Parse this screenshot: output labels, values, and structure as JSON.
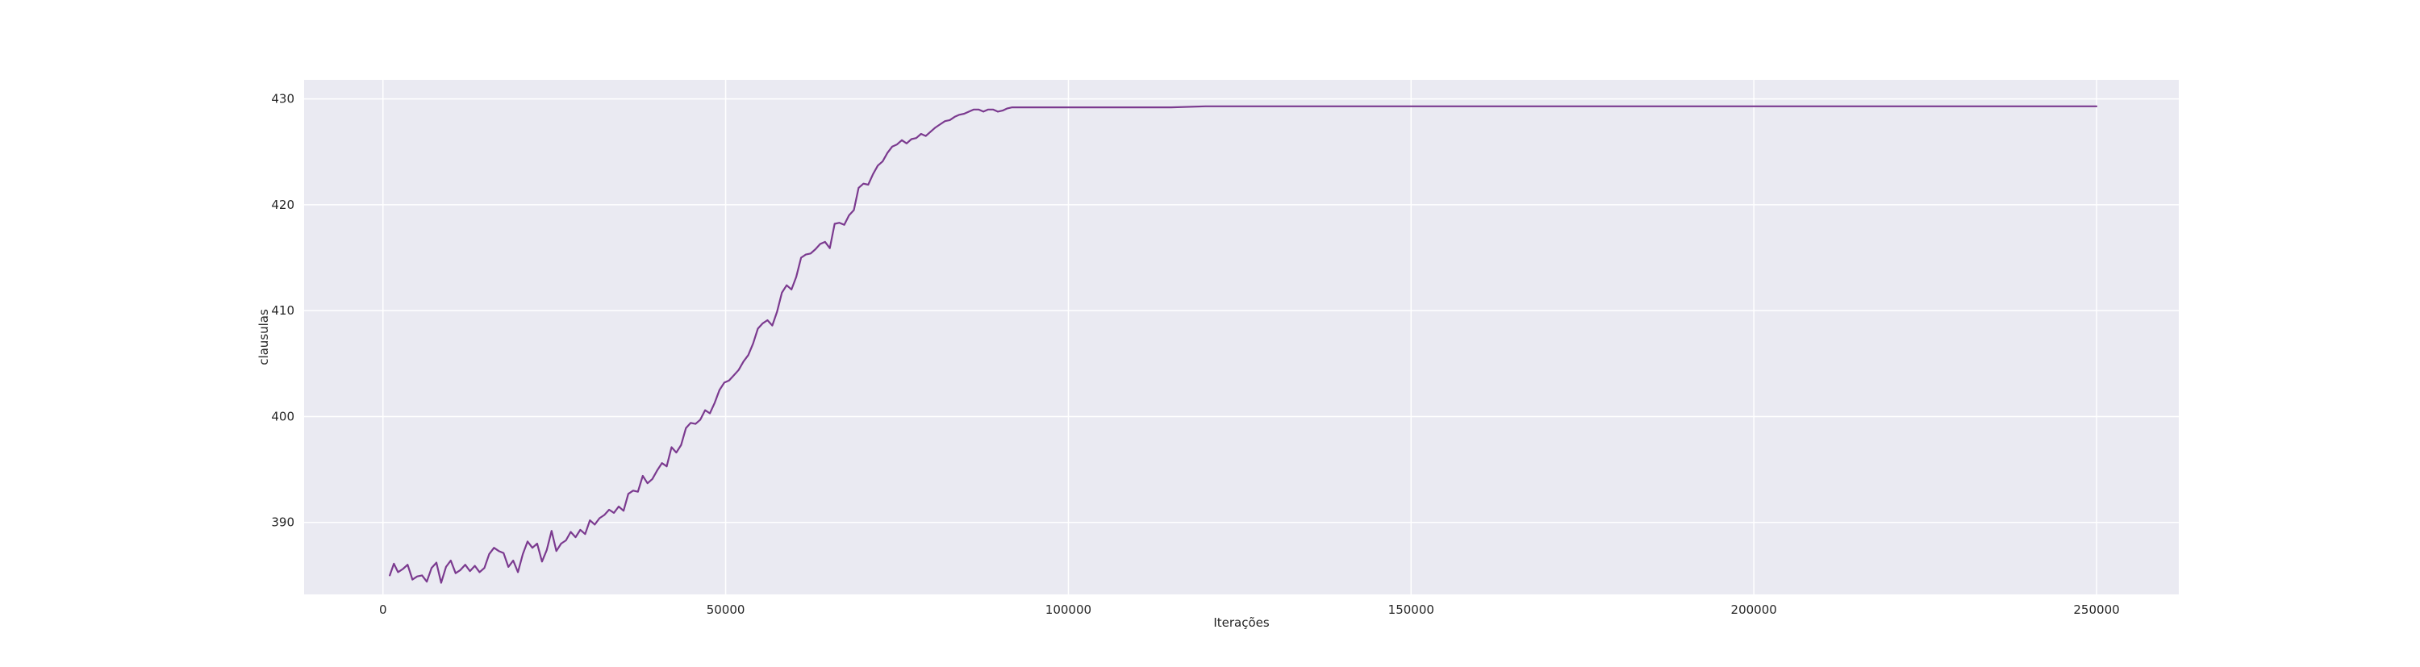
{
  "chart_data": {
    "type": "line",
    "title": "",
    "xlabel": "Iterações",
    "ylabel": "clausulas",
    "xlim": [
      -11500,
      262000
    ],
    "ylim": [
      383.2,
      431.8
    ],
    "xticks": [
      0,
      50000,
      100000,
      150000,
      200000,
      250000
    ],
    "yticks": [
      390,
      400,
      410,
      420,
      430
    ],
    "grid": true,
    "colors": {
      "background": "#eaeaf2",
      "grid": "#ffffff",
      "line": "#7b3a8f"
    },
    "series": [
      {
        "x": [
          1000,
          1600,
          2200,
          2900,
          3600,
          4300,
          5000,
          5700,
          6400,
          7100,
          7800,
          8500,
          9200,
          9900,
          10600,
          11300,
          12000,
          12700,
          13400,
          14100,
          14800,
          15500,
          16200,
          16900,
          17600,
          18300,
          19000,
          19700,
          20400,
          21100,
          21800,
          22500,
          23200,
          23900,
          24600,
          25300,
          26000,
          26700,
          27400,
          28100,
          28800,
          29500,
          30200,
          30900,
          31600,
          32300,
          33000,
          33700,
          34400,
          35100,
          35800,
          36500,
          37200,
          37900,
          38600,
          39300,
          40000,
          40700,
          41400,
          42100,
          42800,
          43500,
          44200,
          44900,
          45600,
          46300,
          47000,
          47700,
          48400,
          49100,
          49800,
          50500,
          51200,
          51900,
          52600,
          53300,
          54000,
          54700,
          55400,
          56100,
          56800,
          57500,
          58200,
          58900,
          59600,
          60300,
          61000,
          61700,
          62400,
          63100,
          63800,
          64500,
          65200,
          65900,
          66600,
          67300,
          68000,
          68700,
          69400,
          70100,
          70800,
          71500,
          72200,
          72900,
          73600,
          74300,
          75000,
          75700,
          76400,
          77100,
          77800,
          78500,
          79200,
          79900,
          80600,
          81300,
          82000,
          82700,
          83400,
          84100,
          84800,
          85500,
          86200,
          86900,
          87600,
          88300,
          89000,
          89700,
          90400,
          91100,
          91800,
          92500,
          93200,
          93900,
          94600,
          95300,
          96000,
          96700,
          97400,
          98100,
          98800,
          99500,
          100200,
          100900,
          101600,
          102300,
          103000,
          103700,
          104400,
          105100,
          105800,
          106500,
          107500,
          109000,
          111000,
          115000,
          120000,
          130000,
          133000,
          134000,
          135000,
          145000,
          160000,
          180000,
          200000,
          220000,
          240000,
          250000
        ],
        "values": [
          385.0,
          386.1,
          385.3,
          385.6,
          386.0,
          384.6,
          384.9,
          385.0,
          384.4,
          385.7,
          386.2,
          384.3,
          385.8,
          386.4,
          385.2,
          385.5,
          386.0,
          385.4,
          385.9,
          385.3,
          385.7,
          387.0,
          387.6,
          387.3,
          387.1,
          385.8,
          386.4,
          385.3,
          387.0,
          388.2,
          387.6,
          388.0,
          386.3,
          387.4,
          389.2,
          387.3,
          388.0,
          388.3,
          389.1,
          388.6,
          389.3,
          388.9,
          390.2,
          389.8,
          390.4,
          390.7,
          391.2,
          390.9,
          391.5,
          391.1,
          392.7,
          393.0,
          392.9,
          394.4,
          393.7,
          394.1,
          394.9,
          395.6,
          395.3,
          397.1,
          396.6,
          397.3,
          398.9,
          399.4,
          399.3,
          399.7,
          400.6,
          400.3,
          401.3,
          402.5,
          403.2,
          403.4,
          403.9,
          404.4,
          405.2,
          405.8,
          406.9,
          408.3,
          408.8,
          409.1,
          408.6,
          409.9,
          411.7,
          412.4,
          412.0,
          413.2,
          415.0,
          415.3,
          415.4,
          415.8,
          416.3,
          416.5,
          415.9,
          418.2,
          418.3,
          418.1,
          419.0,
          419.5,
          421.6,
          422.0,
          421.9,
          422.9,
          423.7,
          424.1,
          424.9,
          425.5,
          425.7,
          426.1,
          425.8,
          426.2,
          426.3,
          426.7,
          426.5,
          426.9,
          427.3,
          427.6,
          427.9,
          428.0,
          428.3,
          428.5,
          428.6,
          428.8,
          429.0,
          429.0,
          428.8,
          429.0,
          429.0,
          428.8,
          428.9,
          429.1,
          429.2,
          429.2,
          429.2,
          429.2,
          429.2,
          429.2,
          429.2,
          429.2,
          429.2,
          429.2,
          429.2,
          429.2,
          429.2,
          429.2,
          429.2,
          429.2,
          429.2,
          429.2,
          429.2,
          429.2,
          429.2,
          429.2,
          429.2,
          429.2,
          429.2,
          429.2,
          429.3,
          429.3,
          429.3,
          429.3,
          429.3,
          429.3,
          429.3,
          429.3,
          429.3,
          429.3,
          429.3,
          429.3
        ]
      }
    ]
  }
}
